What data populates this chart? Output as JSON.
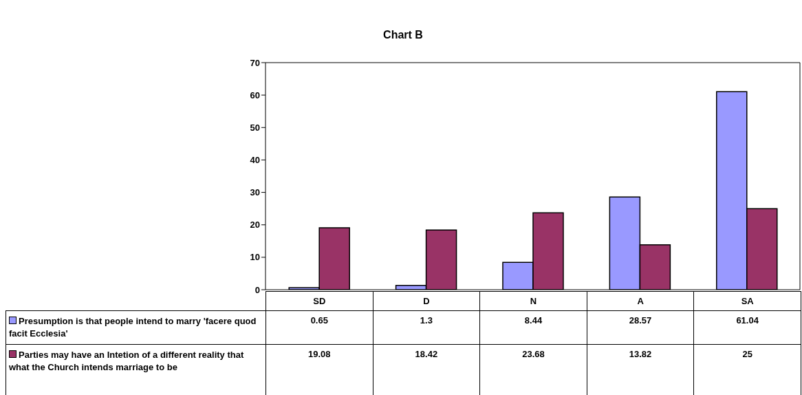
{
  "chart_data": {
    "type": "bar",
    "title": "Chart B",
    "categories": [
      "SD",
      "D",
      "N",
      "A",
      "SA"
    ],
    "series": [
      {
        "name": "Presumption is that people intend to marry 'facere quod facit Ecclesia'",
        "color": "#9999ff",
        "values": [
          0.65,
          1.3,
          8.44,
          28.57,
          61.04
        ]
      },
      {
        "name": "Parties may have an Intetion of a different reality that what the Church intends marriage to be",
        "color": "#993366",
        "values": [
          19.08,
          18.42,
          23.68,
          13.82,
          25
        ]
      }
    ],
    "ylim": [
      0,
      70
    ],
    "yticks": [
      0,
      10,
      20,
      30,
      40,
      50,
      60,
      70
    ],
    "data_labels": true,
    "legend": "bottom"
  }
}
